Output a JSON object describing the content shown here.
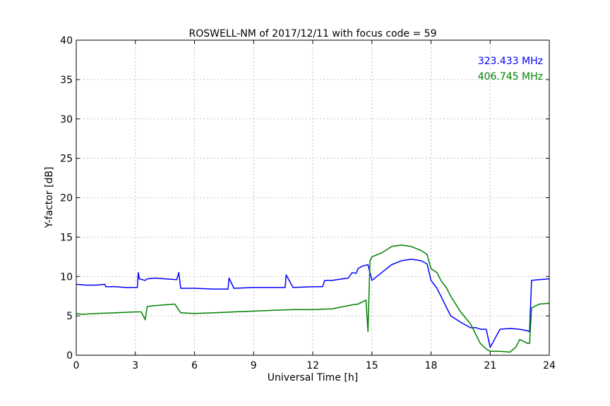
{
  "chart_data": {
    "type": "line",
    "title": "ROSWELL-NM of 2017/12/11 with focus code = 59",
    "xlabel": "Universal Time [h]",
    "ylabel": "Y-factor [dB]",
    "xlim": [
      0,
      24
    ],
    "ylim": [
      0,
      40
    ],
    "xticks": [
      "0",
      "3",
      "6",
      "9",
      "12",
      "15",
      "18",
      "21",
      "24"
    ],
    "yticks": [
      "0",
      "5",
      "10",
      "15",
      "20",
      "25",
      "30",
      "35",
      "40"
    ],
    "grid": true,
    "legend_position": "top-right",
    "series": [
      {
        "name": "323.433 MHz",
        "color": "#0000ff",
        "x": [
          0,
          0.5,
          1,
          1.45,
          1.5,
          2,
          2.5,
          3.1,
          3.15,
          3.2,
          3.5,
          3.6,
          4,
          4.5,
          5.1,
          5.2,
          5.3,
          6,
          7,
          7.7,
          7.75,
          8,
          9,
          10,
          10.6,
          10.65,
          11,
          12,
          12.5,
          12.6,
          13,
          13.5,
          13.8,
          14,
          14.2,
          14.3,
          14.5,
          14.8,
          15,
          15.5,
          16,
          16.5,
          17,
          17.5,
          17.8,
          18,
          18.3,
          18.5,
          18.8,
          19,
          19.5,
          20,
          20.3,
          20.5,
          20.8,
          21,
          21.5,
          22,
          22.5,
          22.9,
          23,
          23.1,
          23.5,
          24
        ],
        "values": [
          9.0,
          8.9,
          8.9,
          9.0,
          8.7,
          8.7,
          8.6,
          8.6,
          10.5,
          9.7,
          9.5,
          9.7,
          9.8,
          9.7,
          9.6,
          10.5,
          8.5,
          8.5,
          8.4,
          8.4,
          9.8,
          8.5,
          8.6,
          8.6,
          8.6,
          10.2,
          8.6,
          8.7,
          8.7,
          9.5,
          9.5,
          9.7,
          9.8,
          10.5,
          10.4,
          11.0,
          11.3,
          11.5,
          9.5,
          10.5,
          11.5,
          12.0,
          12.2,
          12.0,
          11.6,
          9.5,
          8.5,
          7.5,
          6.0,
          5.0,
          4.2,
          3.5,
          3.5,
          3.3,
          3.3,
          1.0,
          3.3,
          3.4,
          3.3,
          3.1,
          3.0,
          9.5,
          9.6,
          9.7
        ]
      },
      {
        "name": "406.745 MHz",
        "color": "#008000",
        "x": [
          0,
          0.3,
          1,
          2,
          3,
          3.3,
          3.5,
          3.6,
          4,
          4.5,
          5,
          5.3,
          6,
          7,
          8,
          9,
          10,
          11,
          12,
          13,
          14,
          14.3,
          14.7,
          14.8,
          14.9,
          15,
          15.5,
          16,
          16.5,
          17,
          17.5,
          17.8,
          18,
          18.3,
          18.5,
          18.8,
          19,
          19.5,
          20,
          20.3,
          20.5,
          20.8,
          21,
          21.5,
          22,
          22.3,
          22.5,
          22.9,
          23,
          23.1,
          23.5,
          24
        ],
        "values": [
          5.3,
          5.2,
          5.3,
          5.4,
          5.5,
          5.5,
          4.5,
          6.2,
          6.3,
          6.4,
          6.5,
          5.4,
          5.3,
          5.4,
          5.5,
          5.6,
          5.7,
          5.8,
          5.8,
          5.9,
          6.4,
          6.5,
          7.0,
          3.0,
          12.0,
          12.5,
          13.0,
          13.8,
          14.0,
          13.8,
          13.3,
          12.8,
          11.0,
          10.5,
          9.5,
          8.5,
          7.5,
          5.5,
          4.0,
          2.5,
          1.5,
          0.8,
          0.5,
          0.5,
          0.4,
          1.0,
          2.0,
          1.5,
          1.5,
          6.0,
          6.5,
          6.6
        ]
      }
    ]
  }
}
